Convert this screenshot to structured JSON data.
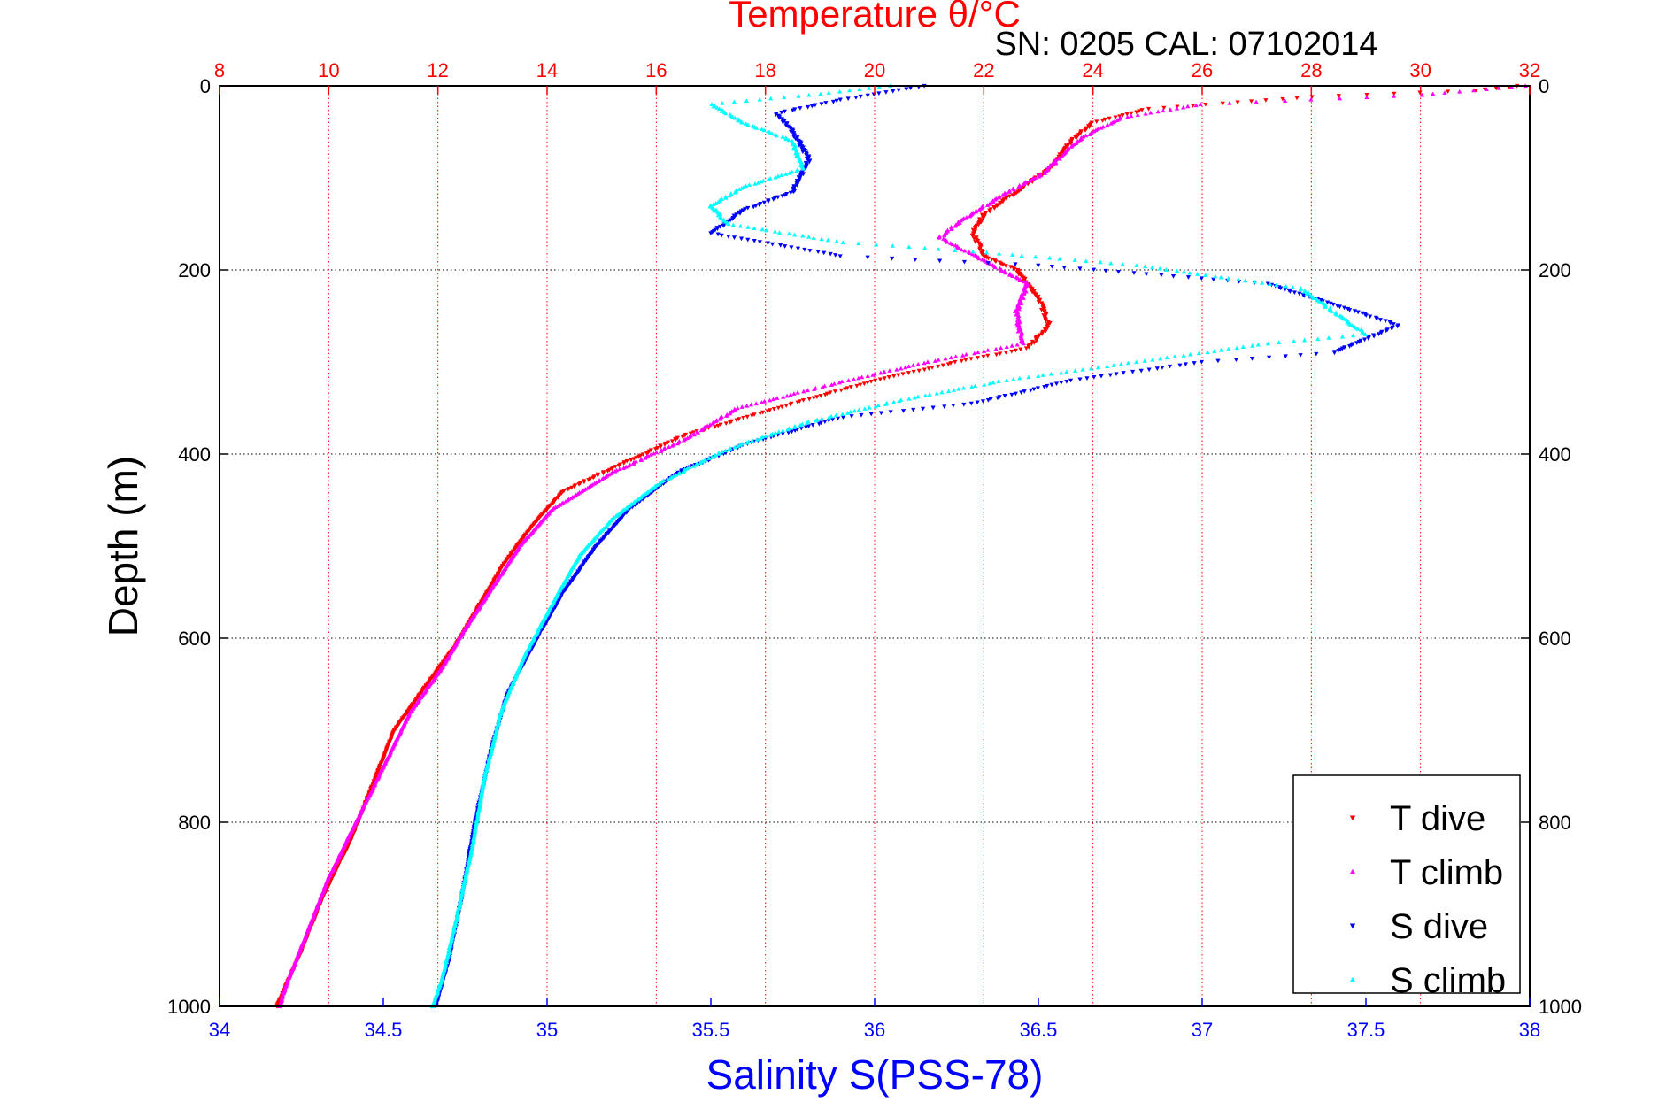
{
  "chart_data": {
    "type": "scatter",
    "title": "Temperature θ/°C",
    "subtitle": "SN: 0205  CAL: 07102014",
    "xlabel": "Salinity S(PSS-78)",
    "ylabel": "Depth (m)",
    "x_bottom": {
      "label": "Salinity S(PSS-78)",
      "range": [
        34,
        38
      ],
      "ticks": [
        "34",
        "34.5",
        "35",
        "35.5",
        "36",
        "36.5",
        "37",
        "37.5",
        "38"
      ]
    },
    "x_top": {
      "label": "Temperature θ/°C",
      "range": [
        8,
        32
      ],
      "ticks": [
        "8",
        "10",
        "12",
        "14",
        "16",
        "18",
        "20",
        "22",
        "24",
        "26",
        "28",
        "30",
        "32"
      ]
    },
    "y": {
      "label": "Depth (m)",
      "range": [
        0,
        1000
      ],
      "reversed": true,
      "ticks": [
        "0",
        "200",
        "400",
        "600",
        "800",
        "1000"
      ]
    },
    "grid": true,
    "legend_position": "bottom-right",
    "series": [
      {
        "name": "T dive",
        "axis": "temperature",
        "color": "#ff0000",
        "marker": "triangle-down",
        "points": [
          [
            31.8,
            0
          ],
          [
            31,
            5
          ],
          [
            28,
            12
          ],
          [
            25,
            25
          ],
          [
            24,
            40
          ],
          [
            23.6,
            60
          ],
          [
            23.2,
            90
          ],
          [
            22.6,
            115
          ],
          [
            22,
            140
          ],
          [
            21.8,
            160
          ],
          [
            22,
            185
          ],
          [
            22.6,
            200
          ],
          [
            23,
            230
          ],
          [
            23.2,
            260
          ],
          [
            22.8,
            285
          ],
          [
            21.5,
            300
          ],
          [
            20,
            320
          ],
          [
            18.5,
            345
          ],
          [
            16.5,
            380
          ],
          [
            15.4,
            410
          ],
          [
            14.3,
            440
          ],
          [
            13.7,
            480
          ],
          [
            13.2,
            520
          ],
          [
            12.8,
            560
          ],
          [
            12.3,
            610
          ],
          [
            11.8,
            650
          ],
          [
            11.2,
            700
          ],
          [
            10.8,
            760
          ],
          [
            10.4,
            820
          ],
          [
            9.9,
            880
          ],
          [
            9.5,
            940
          ],
          [
            9.05,
            1000
          ]
        ]
      },
      {
        "name": "T climb",
        "axis": "temperature",
        "color": "#ff00ff",
        "marker": "triangle-up",
        "points": [
          [
            31.9,
            0
          ],
          [
            30,
            10
          ],
          [
            26,
            20
          ],
          [
            24.5,
            35
          ],
          [
            23.7,
            60
          ],
          [
            23.1,
            95
          ],
          [
            22.3,
            120
          ],
          [
            21.5,
            150
          ],
          [
            21.2,
            165
          ],
          [
            22,
            190
          ],
          [
            22.8,
            215
          ],
          [
            22.6,
            245
          ],
          [
            22.7,
            280
          ],
          [
            21,
            300
          ],
          [
            19.5,
            320
          ],
          [
            17.5,
            350
          ],
          [
            16.5,
            385
          ],
          [
            15.2,
            420
          ],
          [
            14.1,
            460
          ],
          [
            13.5,
            500
          ],
          [
            13,
            545
          ],
          [
            12.5,
            590
          ],
          [
            12.1,
            630
          ],
          [
            11.5,
            680
          ],
          [
            11,
            740
          ],
          [
            10.5,
            800
          ],
          [
            10,
            860
          ],
          [
            9.6,
            920
          ],
          [
            9.2,
            980
          ],
          [
            9.1,
            1000
          ]
        ]
      },
      {
        "name": "S dive",
        "axis": "salinity",
        "color": "#0000ff",
        "marker": "triangle-down",
        "points": [
          [
            36.15,
            0
          ],
          [
            35.9,
            15
          ],
          [
            35.7,
            30
          ],
          [
            35.75,
            50
          ],
          [
            35.8,
            80
          ],
          [
            35.75,
            115
          ],
          [
            35.6,
            135
          ],
          [
            35.5,
            160
          ],
          [
            35.9,
            185
          ],
          [
            36.5,
            195
          ],
          [
            37.2,
            215
          ],
          [
            37.6,
            260
          ],
          [
            37.4,
            290
          ],
          [
            37,
            300
          ],
          [
            36.6,
            320
          ],
          [
            36.3,
            345
          ],
          [
            35.9,
            360
          ],
          [
            35.6,
            390
          ],
          [
            35.4,
            420
          ],
          [
            35.25,
            460
          ],
          [
            35.15,
            500
          ],
          [
            35.05,
            550
          ],
          [
            34.97,
            600
          ],
          [
            34.88,
            660
          ],
          [
            34.83,
            720
          ],
          [
            34.78,
            800
          ],
          [
            34.74,
            880
          ],
          [
            34.7,
            950
          ],
          [
            34.66,
            1000
          ]
        ]
      },
      {
        "name": "S climb",
        "axis": "salinity",
        "color": "#00ffff",
        "marker": "triangle-up",
        "points": [
          [
            36.05,
            0
          ],
          [
            35.8,
            10
          ],
          [
            35.5,
            20
          ],
          [
            35.55,
            30
          ],
          [
            35.6,
            40
          ],
          [
            35.75,
            60
          ],
          [
            35.78,
            90
          ],
          [
            35.6,
            110
          ],
          [
            35.5,
            130
          ],
          [
            35.55,
            150
          ],
          [
            35.9,
            170
          ],
          [
            36.3,
            180
          ],
          [
            36.8,
            195
          ],
          [
            37.3,
            220
          ],
          [
            37.5,
            270
          ],
          [
            37.2,
            280
          ],
          [
            36.8,
            300
          ],
          [
            36.4,
            320
          ],
          [
            36.1,
            340
          ],
          [
            35.8,
            365
          ],
          [
            35.55,
            395
          ],
          [
            35.35,
            430
          ],
          [
            35.2,
            470
          ],
          [
            35.1,
            510
          ],
          [
            35.02,
            560
          ],
          [
            34.93,
            620
          ],
          [
            34.86,
            680
          ],
          [
            34.81,
            750
          ],
          [
            34.77,
            830
          ],
          [
            34.72,
            910
          ],
          [
            34.68,
            970
          ],
          [
            34.65,
            1000
          ]
        ]
      }
    ]
  }
}
